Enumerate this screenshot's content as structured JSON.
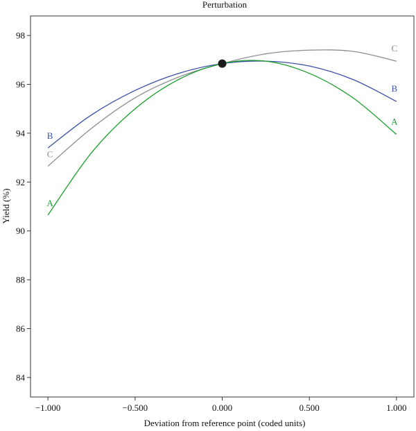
{
  "chart_data": {
    "type": "line",
    "title": "Perturbation",
    "xlabel": "Deviation from reference point (coded units)",
    "ylabel": "Yield (%)",
    "xlim": [
      -1.1,
      1.1
    ],
    "ylim": [
      83.2,
      98.8
    ],
    "x_ticks": [
      -1.0,
      -0.5,
      0.0,
      0.5,
      1.0
    ],
    "x_tick_labels": [
      "-1.000",
      "-0.500",
      "0.000",
      "0.500",
      "1.000"
    ],
    "y_ticks": [
      84,
      86,
      88,
      90,
      92,
      94,
      96,
      98
    ],
    "y_tick_labels": [
      "84",
      "86",
      "88",
      "90",
      "92",
      "94",
      "96",
      "98"
    ],
    "grid": false,
    "legend": "none",
    "reference_point": {
      "x": 0.0,
      "y": 96.85
    },
    "series": [
      {
        "name": "A",
        "color": "#1a9e2a",
        "x": [
          -1.0,
          -0.75,
          -0.5,
          -0.25,
          0.0,
          0.25,
          0.5,
          0.75,
          1.0
        ],
        "y": [
          90.65,
          93.2,
          95.0,
          96.2,
          96.85,
          96.95,
          96.45,
          95.45,
          93.95
        ]
      },
      {
        "name": "B",
        "color": "#3a4fa8",
        "x": [
          -1.0,
          -0.75,
          -0.5,
          -0.25,
          0.0,
          0.25,
          0.5,
          0.75,
          1.0
        ],
        "y": [
          93.4,
          94.75,
          95.75,
          96.45,
          96.85,
          96.95,
          96.75,
          96.2,
          95.3
        ]
      },
      {
        "name": "C",
        "color": "#8c8c8c",
        "x": [
          -1.0,
          -0.75,
          -0.5,
          -0.25,
          0.0,
          0.25,
          0.5,
          0.75,
          1.0
        ],
        "y": [
          92.65,
          94.2,
          95.45,
          96.3,
          96.85,
          97.25,
          97.4,
          97.35,
          96.95
        ]
      }
    ]
  }
}
